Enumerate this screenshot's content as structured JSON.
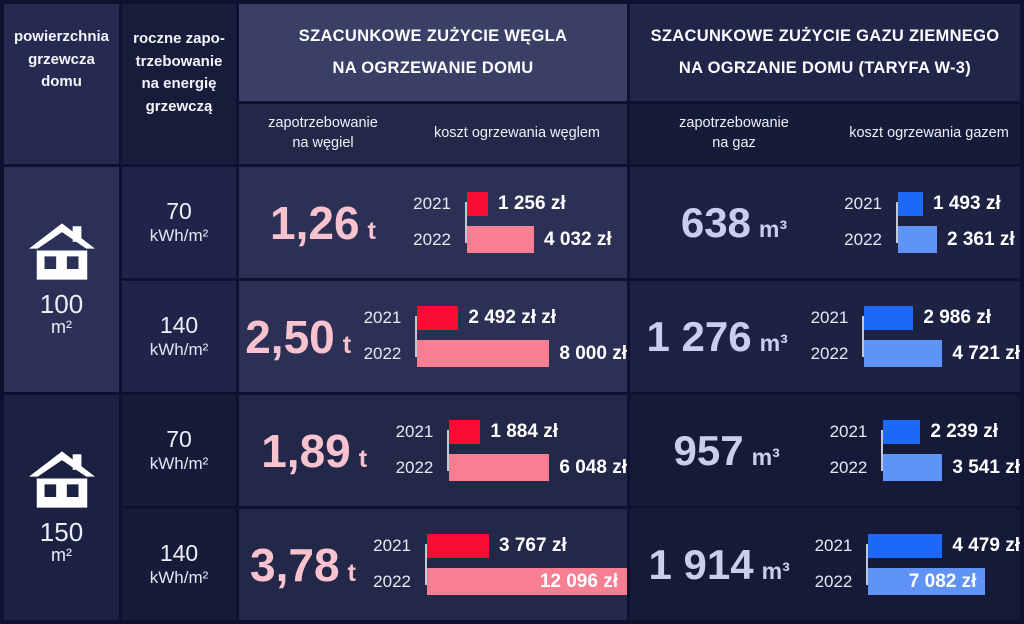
{
  "columns": {
    "area_header": "powierzchnia\ngrzewcza\ndomu",
    "demand_header": "roczne zapo-\ntrzebowanie\nna energię\ngrzewczą"
  },
  "coal_section": {
    "title": "SZACUNKOWE ZUŻYCIE WĘGLA\nNA OGRZEWANIE DOMU",
    "demand_subheader": "zapotrzebowanie\nna węgiel",
    "cost_subheader": "koszt ogrzewania węglem"
  },
  "gas_section": {
    "title": "SZACUNKOWE ZUŻYCIE GAZU ZIEMNEGO\nNA OGRZANIE DOMU (TARYFA W-3)",
    "demand_subheader": "zapotrzebowanie\nna gaz",
    "cost_subheader": "koszt ogrzewania gazem"
  },
  "houses": [
    {
      "area": "100",
      "unit": "m²"
    },
    {
      "area": "150",
      "unit": "m²"
    }
  ],
  "rows": [
    {
      "demand": "70",
      "demand_unit": "kWh/m²",
      "coal_amount": "1,26",
      "coal_unit": "t",
      "coal_2021": {
        "year": "2021",
        "label": "1 256 zł",
        "value": 1256
      },
      "coal_2022": {
        "year": "2022",
        "label": "4 032 zł",
        "value": 4032
      },
      "gas_amount": "638",
      "gas_unit": "m³",
      "gas_2021": {
        "year": "2021",
        "label": "1 493 zł",
        "value": 1493
      },
      "gas_2022": {
        "year": "2022",
        "label": "2 361 zł",
        "value": 2361
      }
    },
    {
      "demand": "140",
      "demand_unit": "kWh/m²",
      "coal_amount": "2,50",
      "coal_unit": "t",
      "coal_2021": {
        "year": "2021",
        "label": "2 492 zł zł",
        "value": 2492
      },
      "coal_2022": {
        "year": "2022",
        "label": "8 000 zł",
        "value": 8000
      },
      "gas_amount": "1 276",
      "gas_unit": "m³",
      "gas_2021": {
        "year": "2021",
        "label": "2 986 zł",
        "value": 2986
      },
      "gas_2022": {
        "year": "2022",
        "label": "4 721 zł",
        "value": 4721
      }
    },
    {
      "demand": "70",
      "demand_unit": "kWh/m²",
      "coal_amount": "1,89",
      "coal_unit": "t",
      "coal_2021": {
        "year": "2021",
        "label": "1 884 zł",
        "value": 1884
      },
      "coal_2022": {
        "year": "2022",
        "label": "6 048 zł",
        "value": 6048
      },
      "gas_amount": "957",
      "gas_unit": "m³",
      "gas_2021": {
        "year": "2021",
        "label": "2 239 zł",
        "value": 2239
      },
      "gas_2022": {
        "year": "2022",
        "label": "3 541 zł",
        "value": 3541
      }
    },
    {
      "demand": "140",
      "demand_unit": "kWh/m²",
      "coal_amount": "3,78",
      "coal_unit": "t",
      "coal_2021": {
        "year": "2021",
        "label": "3 767 zł",
        "value": 3767
      },
      "coal_2022": {
        "year": "2022",
        "label": "12 096 zł",
        "value": 12096
      },
      "gas_amount": "1 914",
      "gas_unit": "m³",
      "gas_2021": {
        "year": "2021",
        "label": "4 479 zł",
        "value": 4479
      },
      "gas_2022": {
        "year": "2022",
        "label": "7 082 zł",
        "value": 7082
      }
    }
  ],
  "colors": {
    "coal_2021_bar": "#f80c33",
    "coal_2022_bar": "#f87e92",
    "gas_2021_bar": "#1d68f6",
    "gas_2022_bar": "#6093f6",
    "coal_amount_text": "#f8c2cf",
    "gas_amount_text": "#c7cfec",
    "axis_line": "#c3c7da"
  },
  "chart_data": {
    "type": "bar",
    "orientation": "horizontal",
    "value_unit": "zł",
    "categories": [
      "2021",
      "2022"
    ],
    "max_value_zl": 12096,
    "coal_title": "SZACUNKOWE ZUŻYCIE WĘGLA NA OGRZEWANIE DOMU",
    "gas_title": "SZACUNKOWE ZUŻYCIE GAZU ZIEMNEGO NA OGRZANIE DOMU (TARYFA W-3)",
    "groups": [
      {
        "house_area_m2": 100,
        "heat_demand_kwh_per_m2": 70,
        "coal_demand_t": 1.26,
        "coal_cost_zl": [
          1256,
          4032
        ],
        "gas_demand_m3": 638,
        "gas_cost_zl": [
          1493,
          2361
        ]
      },
      {
        "house_area_m2": 100,
        "heat_demand_kwh_per_m2": 140,
        "coal_demand_t": 2.5,
        "coal_cost_zl": [
          2492,
          8000
        ],
        "gas_demand_m3": 1276,
        "gas_cost_zl": [
          2986,
          4721
        ]
      },
      {
        "house_area_m2": 150,
        "heat_demand_kwh_per_m2": 70,
        "coal_demand_t": 1.89,
        "coal_cost_zl": [
          1884,
          6048
        ],
        "gas_demand_m3": 957,
        "gas_cost_zl": [
          2239,
          3541
        ]
      },
      {
        "house_area_m2": 150,
        "heat_demand_kwh_per_m2": 140,
        "coal_demand_t": 3.78,
        "coal_cost_zl": [
          3767,
          12096
        ],
        "gas_demand_m3": 1914,
        "gas_cost_zl": [
          4479,
          7082
        ]
      }
    ]
  }
}
